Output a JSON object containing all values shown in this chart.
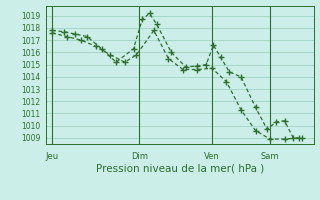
{
  "bg_color": "#cceee8",
  "grid_color": "#99ccbb",
  "line_color": "#2d6e2d",
  "ylabel": "Pression niveau de la mer( hPa )",
  "ylim": [
    1008.5,
    1019.8
  ],
  "yticks": [
    1009,
    1010,
    1011,
    1012,
    1013,
    1014,
    1015,
    1016,
    1017,
    1018,
    1019
  ],
  "xtick_labels": [
    "Jeu",
    "Dim",
    "Ven",
    "Sam"
  ],
  "xtick_positions": [
    0.0,
    3.0,
    5.5,
    7.5
  ],
  "series1_x": [
    0.0,
    0.4,
    0.8,
    1.2,
    1.7,
    2.2,
    2.8,
    3.1,
    3.35,
    3.6,
    4.1,
    4.6,
    5.0,
    5.3,
    5.55,
    5.8,
    6.1,
    6.5,
    7.0,
    7.4,
    7.7,
    8.0,
    8.3,
    8.6
  ],
  "series1_y": [
    1017.8,
    1017.7,
    1017.5,
    1017.3,
    1016.3,
    1015.2,
    1016.3,
    1018.7,
    1019.2,
    1018.3,
    1016.0,
    1014.8,
    1014.9,
    1015.0,
    1016.6,
    1015.6,
    1014.4,
    1014.0,
    1011.5,
    1009.7,
    1010.3,
    1010.4,
    1009.0,
    1009.0
  ],
  "series2_x": [
    0.0,
    0.5,
    1.0,
    1.5,
    2.0,
    2.5,
    2.9,
    3.5,
    4.0,
    4.5,
    5.0,
    5.5,
    6.0,
    6.5,
    7.0,
    7.5,
    8.0,
    8.5
  ],
  "series2_y": [
    1017.6,
    1017.3,
    1017.0,
    1016.5,
    1015.8,
    1015.2,
    1015.8,
    1017.8,
    1015.5,
    1014.6,
    1014.6,
    1014.7,
    1013.6,
    1011.3,
    1009.6,
    1008.9,
    1008.9,
    1009.0
  ],
  "xlim": [
    -0.2,
    9.0
  ],
  "vline_x": [
    0.0,
    3.0,
    5.5,
    7.5
  ],
  "figsize": [
    3.2,
    2.0
  ],
  "dpi": 100,
  "tick_fontsize": 5.5,
  "xlabel_fontsize": 7.5
}
